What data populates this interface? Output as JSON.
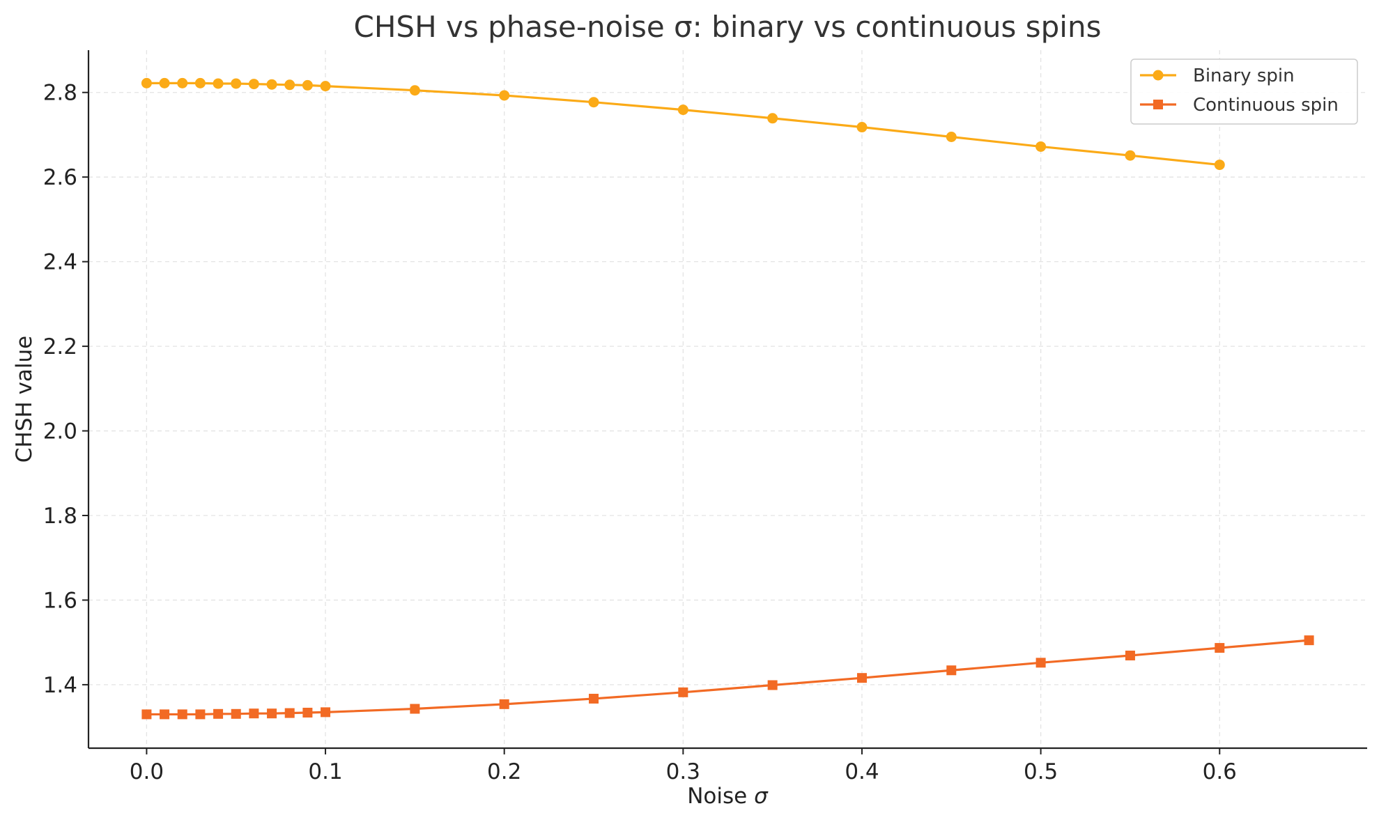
{
  "chart_data": {
    "type": "line",
    "title": "CHSH vs phase-noise σ: binary vs continuous spins",
    "xlabel": "Noise",
    "xlabel_symbol": "σ",
    "ylabel": "CHSH value",
    "xlim": [
      -0.0325,
      0.6825
    ],
    "ylim": [
      1.25,
      2.9
    ],
    "xticks": [
      "0.0",
      "0.1",
      "0.2",
      "0.3",
      "0.4",
      "0.5",
      "0.6"
    ],
    "yticks": [
      "1.4",
      "1.6",
      "1.8",
      "2.0",
      "2.2",
      "2.4",
      "2.6",
      "2.8"
    ],
    "grid": true,
    "legend_position": "top-right",
    "series": [
      {
        "name": "Binary spin",
        "color": "#fbaa17",
        "marker": "circle",
        "x": [
          0.0,
          0.01,
          0.02,
          0.03,
          0.04,
          0.05,
          0.06,
          0.07,
          0.08,
          0.09,
          0.1,
          0.15,
          0.2,
          0.25,
          0.3,
          0.35,
          0.4,
          0.45,
          0.5,
          0.55,
          0.6
        ],
        "y": [
          2.822,
          2.822,
          2.822,
          2.822,
          2.821,
          2.821,
          2.82,
          2.819,
          2.818,
          2.817,
          2.815,
          2.805,
          2.793,
          2.777,
          2.759,
          2.739,
          2.718,
          2.695,
          2.672,
          2.651,
          2.629
        ]
      },
      {
        "name": "Continuous spin",
        "color": "#f26a24",
        "marker": "square",
        "x": [
          0.0,
          0.01,
          0.02,
          0.03,
          0.04,
          0.05,
          0.06,
          0.07,
          0.08,
          0.09,
          0.1,
          0.15,
          0.2,
          0.25,
          0.3,
          0.35,
          0.4,
          0.45,
          0.5,
          0.55,
          0.6,
          0.65
        ],
        "y": [
          1.33,
          1.33,
          1.33,
          1.33,
          1.331,
          1.331,
          1.332,
          1.332,
          1.333,
          1.334,
          1.335,
          1.343,
          1.354,
          1.367,
          1.382,
          1.399,
          1.416,
          1.434,
          1.452,
          1.469,
          1.487,
          1.505
        ]
      }
    ]
  }
}
